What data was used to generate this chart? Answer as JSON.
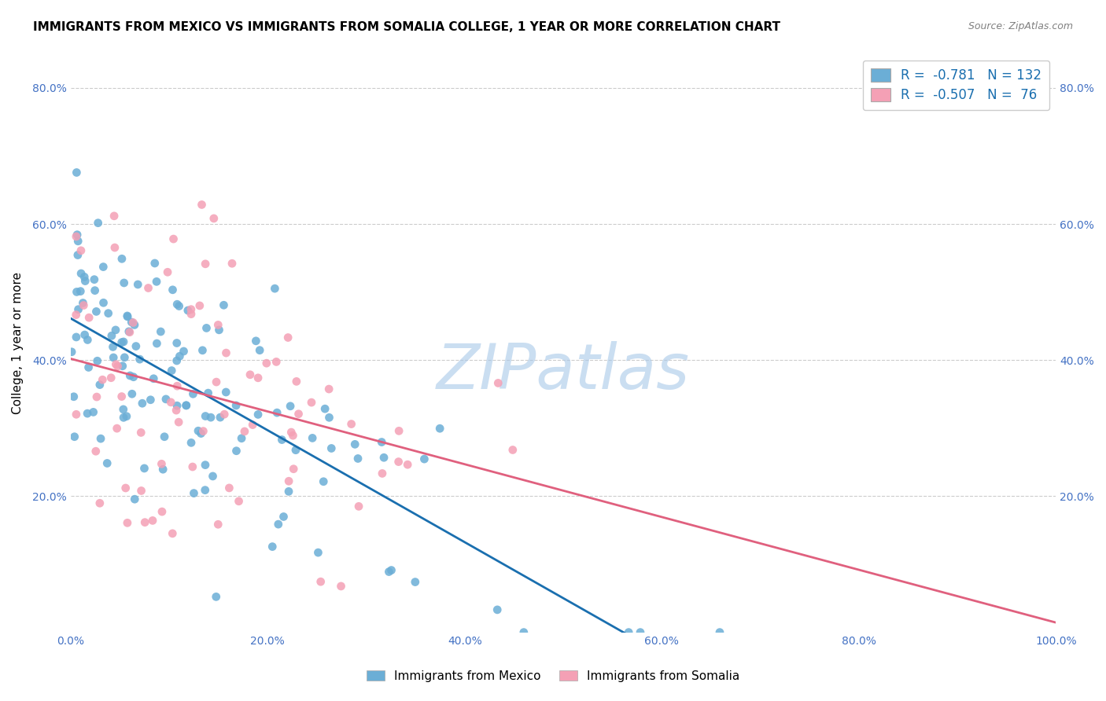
{
  "title": "IMMIGRANTS FROM MEXICO VS IMMIGRANTS FROM SOMALIA COLLEGE, 1 YEAR OR MORE CORRELATION CHART",
  "source": "Source: ZipAtlas.com",
  "ylabel": "College, 1 year or more",
  "xlabel": "",
  "xlim": [
    0.0,
    1.0
  ],
  "ylim": [
    0.0,
    0.85
  ],
  "mexico_color": "#6baed6",
  "somalia_color": "#f4a0b5",
  "mexico_R": -0.781,
  "mexico_N": 132,
  "somalia_R": -0.507,
  "somalia_N": 76,
  "mexico_line_color": "#1a6faf",
  "somalia_line_color": "#e0607e",
  "watermark": "ZIPatlas",
  "watermark_color": "#a8c8e8",
  "legend_label_mexico": "Immigrants from Mexico",
  "legend_label_somalia": "Immigrants from Somalia",
  "legend_R_color": "#1a6faf",
  "title_fontsize": 11,
  "axis_tick_color": "#4472c4",
  "grid_color": "#cccccc"
}
